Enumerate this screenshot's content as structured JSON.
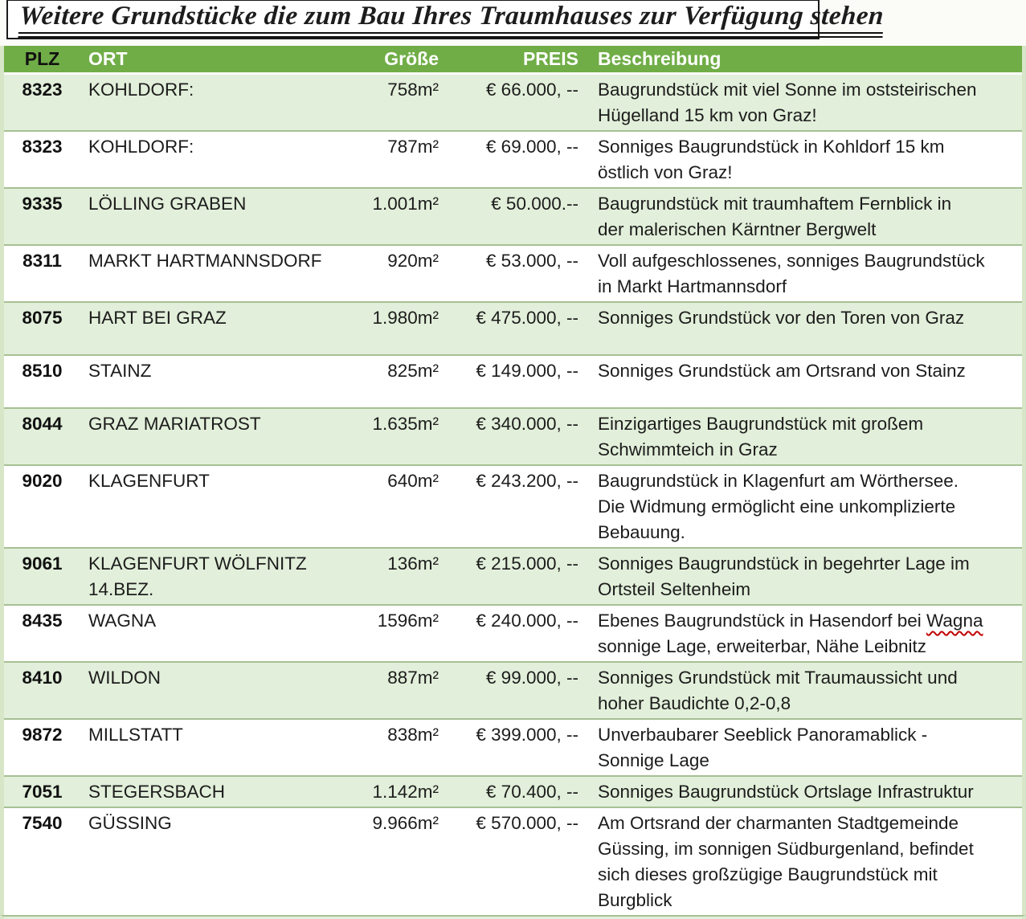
{
  "title": "Weitere Grundstücke die zum Bau Ihres Traumhauses zur Verfügung stehen",
  "colors": {
    "header_bg": "#70ad47",
    "header_text": "#ffffff",
    "band_row_bg": "#e2efda",
    "row_separator": "#a6c094",
    "body_text": "#1c1c1c",
    "spellcheck_underline": "#c00000"
  },
  "table": {
    "headers": [
      "PLZ",
      "ORT",
      "Größe",
      "PREIS",
      "Beschreibung"
    ],
    "rows": [
      {
        "plz": "8323",
        "ort": "KOHLDORF:",
        "groesse": "758m²",
        "preis": "€ 66.000, --",
        "beschreibung": "Baugrundstück mit viel Sonne im oststeirischen\nHügelland 15 km von Graz!"
      },
      {
        "plz": "8323",
        "ort": "KOHLDORF:",
        "groesse": "787m²",
        "preis": "€ 69.000, --",
        "beschreibung": "Sonniges Baugrundstück in Kohldorf 15 km\nöstlich von Graz!"
      },
      {
        "plz": "9335",
        "ort": "LÖLLING GRABEN",
        "groesse": "1.001m²",
        "preis": "€ 50.000.--",
        "beschreibung": "Baugrundstück mit traumhaftem Fernblick in\nder malerischen Kärntner Bergwelt"
      },
      {
        "plz": "8311",
        "ort": "MARKT HARTMANNSDORF",
        "groesse": "920m²",
        "preis": "€ 53.000, --",
        "beschreibung": "Voll aufgeschlossenes, sonniges Baugrundstück\nin Markt Hartmannsdorf"
      },
      {
        "plz": "8075",
        "ort": "HART BEI GRAZ",
        "groesse": "1.980m²",
        "preis": "€ 475.000, --",
        "beschreibung": "Sonniges Grundstück vor den Toren von Graz"
      },
      {
        "plz": "8510",
        "ort": "STAINZ",
        "groesse": "825m²",
        "preis": "€ 149.000, --",
        "beschreibung": "Sonniges Grundstück am Ortsrand von Stainz"
      },
      {
        "plz": "8044",
        "ort": "GRAZ MARIATROST",
        "groesse": "1.635m²",
        "preis": "€ 340.000, --",
        "beschreibung": "Einzigartiges Baugrundstück mit großem\nSchwimmteich in Graz"
      },
      {
        "plz": "9020",
        "ort": "KLAGENFURT",
        "groesse": "640m²",
        "preis": "€ 243.200, --",
        "beschreibung": "Baugrundstück in Klagenfurt am Wörthersee.\nDie Widmung ermöglicht eine unkomplizierte\nBebauung."
      },
      {
        "plz": "9061",
        "ort": "KLAGENFURT WÖLFNITZ\n14.BEZ.",
        "groesse": "136m²",
        "preis": "€ 215.000, --",
        "beschreibung": "Sonniges Baugrundstück in begehrter Lage im\nOrtsteil Seltenheim"
      },
      {
        "plz": "8435",
        "ort": "WAGNA",
        "groesse": "1596m²",
        "preis": "€ 240.000, --",
        "beschreibung": "Ebenes Baugrundstück in Hasendorf bei Wagna\nsonnige Lage, erweiterbar, Nähe Leibnitz",
        "misspelled": "Wagna"
      },
      {
        "plz": "8410",
        "ort": "WILDON",
        "groesse": "887m²",
        "preis": "€ 99.000, --",
        "beschreibung": "Sonniges Grundstück mit Traumaussicht und\nhoher Baudichte 0,2-0,8"
      },
      {
        "plz": "9872",
        "ort": "MILLSTATT",
        "groesse": "838m²",
        "preis": "€ 399.000, --",
        "beschreibung": "Unverbaubarer Seeblick Panoramablick -\nSonnige Lage"
      },
      {
        "plz": "7051",
        "ort": "STEGERSBACH",
        "groesse": "1.142m²",
        "preis": "€ 70.400, --",
        "beschreibung": "Sonniges Baugrundstück Ortslage Infrastruktur"
      },
      {
        "plz": "7540",
        "ort": "GÜSSING",
        "groesse": "9.966m²",
        "preis": "€ 570.000, --",
        "beschreibung": "Am Ortsrand der charmanten Stadtgemeinde\nGüssing, im sonnigen Südburgenland, befindet\nsich dieses großzügige Baugrundstück mit\nBurgblick"
      }
    ]
  }
}
